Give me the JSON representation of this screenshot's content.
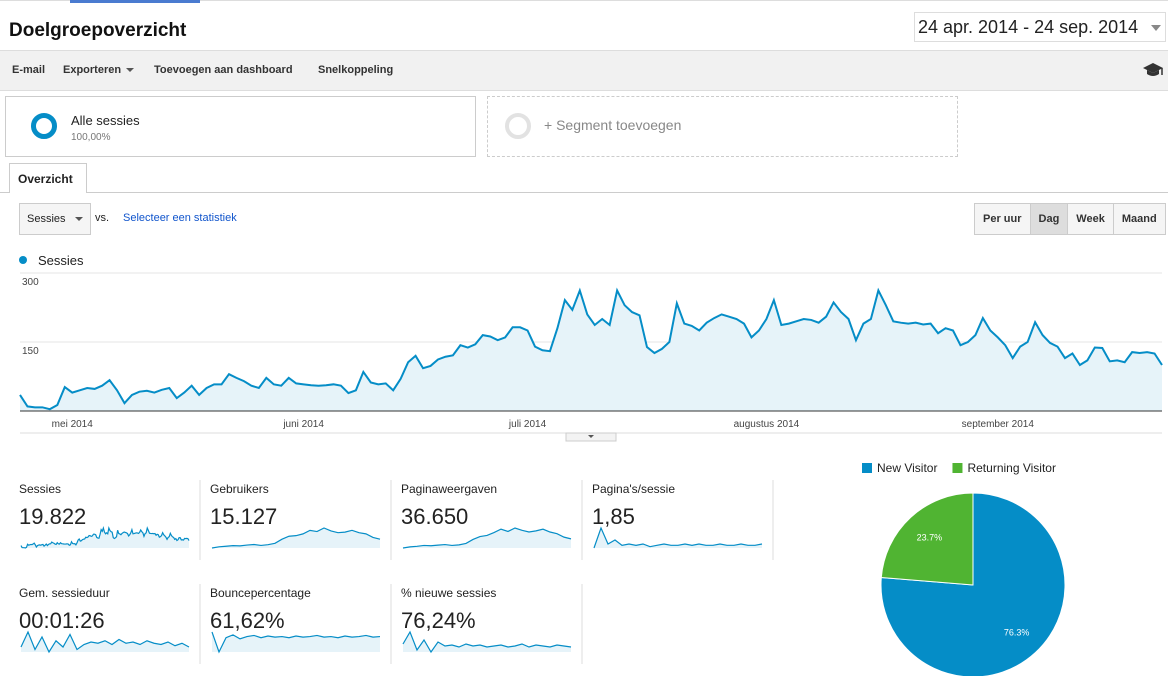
{
  "header": {
    "title": "Doelgroepoverzicht",
    "date_range": "24 apr. 2014 - 24 sep. 2014"
  },
  "toolbar": [
    "E-mail",
    "Exporteren",
    "Toevoegen aan dashboard",
    "Snelkoppeling"
  ],
  "segments": [
    {
      "name": "Alle sessies",
      "share": "100,00%"
    },
    {
      "name": "+ Segment toevoegen"
    }
  ],
  "tab": "Overzicht",
  "metric_select": "Sessies",
  "vs": "vs.",
  "compare_link": "Selecteer een statistiek",
  "granularity": [
    "Per uur",
    "Dag",
    "Week",
    "Maand"
  ],
  "granularity_active": 1,
  "chart_data": [
    {
      "type": "line",
      "categories": [
        null,
        null,
        null,
        null,
        null,
        null,
        null,
        "mei 2014",
        null,
        null,
        null,
        null,
        null,
        null,
        null,
        null,
        null,
        null,
        null,
        null,
        null,
        null,
        null,
        null,
        null,
        null,
        null,
        null,
        null,
        null,
        null,
        null,
        null,
        null,
        null,
        null,
        null,
        null,
        "juni 2014",
        null,
        null,
        null,
        null,
        null,
        null,
        null,
        null,
        null,
        null,
        null,
        null,
        null,
        null,
        null,
        null,
        null,
        null,
        null,
        null,
        null,
        null,
        null,
        null,
        null,
        null,
        null,
        null,
        null,
        "juli 2014",
        null,
        null,
        null,
        null,
        null,
        null,
        null,
        null,
        null,
        null,
        null,
        null,
        null,
        null,
        null,
        null,
        null,
        null,
        null,
        null,
        null,
        null,
        null,
        null,
        null,
        null,
        null,
        null,
        null,
        null,
        null,
        "augustus 2014",
        null,
        null,
        null,
        null,
        null,
        null,
        null,
        null,
        null,
        null,
        null,
        null,
        null,
        null,
        null,
        null,
        null,
        null,
        null,
        null,
        null,
        null,
        null,
        null,
        null,
        null,
        null,
        null,
        null,
        null,
        "september 2014",
        null,
        null,
        null,
        null,
        null,
        null,
        null,
        null,
        null,
        null,
        null,
        null,
        null,
        null,
        null,
        null,
        null,
        null,
        null,
        null,
        null,
        null
      ],
      "series": [
        {
          "name": "Sessies",
          "color": "#058dc7",
          "values": [
            35,
            10,
            8,
            8,
            4,
            13,
            52,
            40,
            45,
            50,
            48,
            55,
            67,
            45,
            17,
            35,
            42,
            44,
            40,
            46,
            50,
            28,
            40,
            55,
            35,
            50,
            58,
            58,
            80,
            72,
            65,
            55,
            50,
            72,
            58,
            55,
            72,
            60,
            58,
            56,
            55,
            56,
            58,
            55,
            39,
            45,
            85,
            62,
            58,
            60,
            45,
            70,
            106,
            120,
            93,
            98,
            112,
            118,
            121,
            143,
            138,
            145,
            165,
            162,
            154,
            160,
            182,
            182,
            175,
            140,
            132,
            130,
            180,
            241,
            220,
            262,
            210,
            187,
            200,
            187,
            262,
            230,
            215,
            208,
            139,
            126,
            135,
            150,
            234,
            190,
            185,
            175,
            192,
            202,
            210,
            205,
            200,
            190,
            160,
            175,
            200,
            241,
            187,
            190,
            195,
            200,
            198,
            192,
            205,
            236,
            215,
            200,
            154,
            190,
            200,
            262,
            230,
            195,
            192,
            190,
            192,
            188,
            190,
            169,
            180,
            175,
            143,
            150,
            165,
            202,
            175,
            160,
            143,
            115,
            140,
            150,
            193,
            165,
            148,
            140,
            115,
            125,
            100,
            110,
            138,
            137,
            108,
            110,
            106,
            128,
            126,
            128,
            125,
            100
          ]
        }
      ],
      "ylim": [
        0,
        300
      ],
      "yticks": [
        150,
        300
      ],
      "grid": true,
      "area": true
    },
    {
      "type": "pie",
      "categories": [
        "New Visitor",
        "Returning Visitor"
      ],
      "values": [
        76.3,
        23.7
      ],
      "value_labels": [
        "76.3%",
        "23.7%"
      ],
      "colors": [
        "#058dc7",
        "#50b432"
      ],
      "legend": "top"
    }
  ],
  "metrics": [
    {
      "name": "Sessies",
      "value": "19.822"
    },
    {
      "name": "Gebruikers",
      "value": "15.127",
      "trend": [
        20,
        30,
        35,
        40,
        38,
        45,
        50,
        42,
        48,
        60,
        95,
        120,
        125,
        140,
        170,
        160,
        190,
        165,
        150,
        155,
        170,
        150,
        140,
        110,
        95
      ]
    },
    {
      "name": "Paginaweergaven",
      "value": "36.650",
      "trend": [
        50,
        70,
        80,
        95,
        90,
        100,
        110,
        95,
        105,
        130,
        200,
        250,
        270,
        320,
        380,
        340,
        400,
        360,
        330,
        350,
        380,
        330,
        300,
        240,
        210
      ]
    },
    {
      "name": "Pagina's/sessie",
      "value": "1,85",
      "trend": [
        1.6,
        3.1,
        1.9,
        2.2,
        1.8,
        1.9,
        1.8,
        1.9,
        1.7,
        1.8,
        1.9,
        1.8,
        1.8,
        1.9,
        1.8,
        1.9,
        1.8,
        1.8,
        1.9,
        1.8,
        1.8,
        1.9,
        1.8,
        1.8,
        1.9
      ]
    },
    {
      "name": "Gem. sessieduur",
      "value": "00:01:26",
      "trend": [
        70,
        130,
        60,
        110,
        50,
        95,
        70,
        120,
        60,
        80,
        90,
        85,
        95,
        80,
        100,
        85,
        90,
        80,
        95,
        85,
        80,
        90,
        75,
        85,
        70
      ]
    },
    {
      "name": "Bouncepercentage",
      "value": "61,62%",
      "trend": [
        70,
        35,
        60,
        65,
        58,
        62,
        64,
        60,
        63,
        61,
        62,
        60,
        63,
        61,
        62,
        64,
        61,
        62,
        60,
        63,
        61,
        62,
        64,
        61,
        62
      ]
    },
    {
      "name": "% nieuwe sessies",
      "value": "76,24%",
      "trend": [
        78,
        90,
        72,
        82,
        70,
        80,
        76,
        77,
        75,
        78,
        76,
        77,
        75,
        76,
        77,
        75,
        76,
        78,
        75,
        77,
        76,
        75,
        77,
        76,
        75
      ]
    }
  ]
}
